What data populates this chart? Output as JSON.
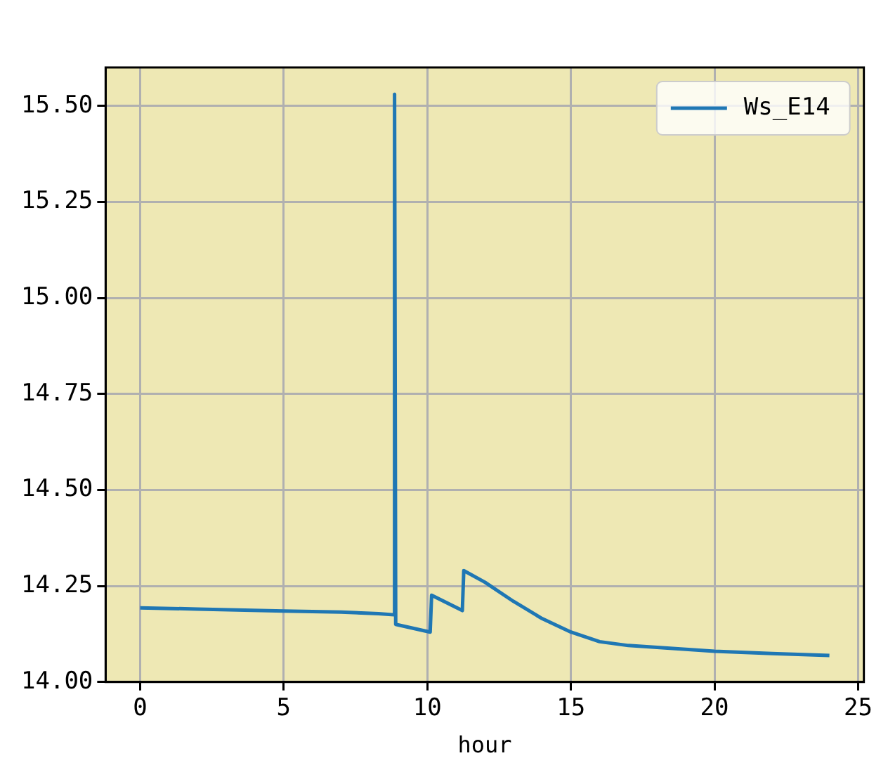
{
  "chart_data": {
    "type": "line",
    "xlabel": "hour",
    "series": [
      {
        "name": "Ws_E14",
        "color": "#1f77b4",
        "x": [
          0,
          2,
          5,
          7,
          8.3,
          8.84,
          8.86,
          8.9,
          10.1,
          10.15,
          11.22,
          11.27,
          12,
          13,
          14,
          15,
          16,
          17,
          18,
          20,
          22,
          24
        ],
        "values": [
          14.193,
          14.19,
          14.185,
          14.182,
          14.178,
          14.175,
          15.53,
          14.15,
          14.13,
          14.226,
          14.186,
          14.29,
          14.26,
          14.21,
          14.165,
          14.13,
          14.105,
          14.095,
          14.09,
          14.08,
          14.074,
          14.069
        ]
      }
    ],
    "xlim": [
      -1.2,
      25.2
    ],
    "xticks": [
      0,
      5,
      10,
      15,
      20,
      25
    ],
    "ylim": [
      14.0,
      15.6
    ],
    "yticks": [
      {
        "value": 14.0,
        "label": "14.00"
      },
      {
        "value": 14.25,
        "label": "14.25"
      },
      {
        "value": 14.5,
        "label": "14.50"
      },
      {
        "value": 14.75,
        "label": "14.75"
      },
      {
        "value": 15.0,
        "label": "15.00"
      },
      {
        "value": 15.25,
        "label": "15.25"
      },
      {
        "value": 15.5,
        "label": "15.50"
      }
    ],
    "grid": true,
    "legend": "top right",
    "marker": "none",
    "line_style": "solid"
  }
}
